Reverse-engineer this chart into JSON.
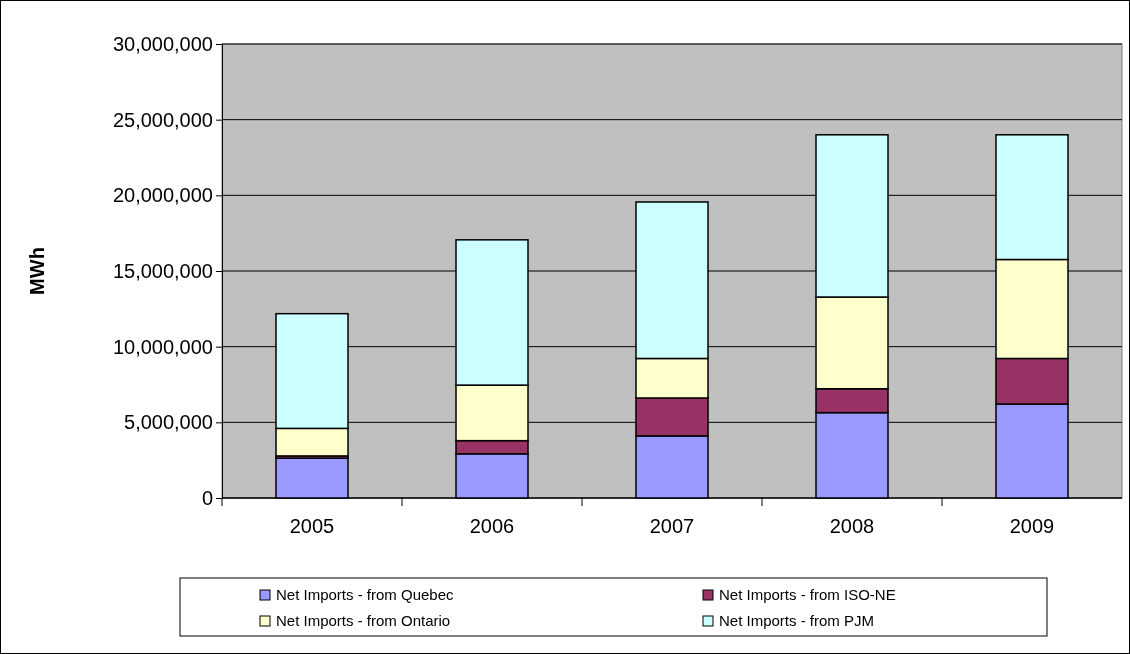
{
  "chart_data": {
    "type": "bar",
    "stacked": true,
    "ylabel": "MWh",
    "categories": [
      "2005",
      "2006",
      "2007",
      "2008",
      "2009"
    ],
    "series": [
      {
        "name": "Net Imports - from Quebec",
        "color": "#9999ff",
        "values": [
          2630000,
          2920000,
          4100000,
          5640000,
          6210000
        ]
      },
      {
        "name": "Net Imports - from ISO-NE",
        "color": "#993366",
        "values": [
          150000,
          870000,
          2510000,
          1580000,
          3010000
        ]
      },
      {
        "name": "Net Imports - from Ontario",
        "color": "#ffffcc",
        "values": [
          1820000,
          3670000,
          2610000,
          6060000,
          6540000
        ]
      },
      {
        "name": "Net Imports - from PJM",
        "color": "#ccffff",
        "values": [
          7580000,
          9600000,
          10340000,
          10720000,
          8240000
        ]
      }
    ],
    "ylim": [
      0,
      30000000
    ],
    "yticks": [
      0,
      {
        "value": 5000000,
        "label": "5,000,000"
      },
      {
        "value": 10000000,
        "label": "10,000,000"
      },
      {
        "value": 15000000,
        "label": "15,000,000"
      },
      {
        "value": 20000000,
        "label": "20,000,000"
      },
      {
        "value": 25000000,
        "label": "25,000,000"
      },
      {
        "value": 30000000,
        "label": "30,000,000"
      }
    ],
    "grid": "y",
    "legend": "bottom"
  }
}
